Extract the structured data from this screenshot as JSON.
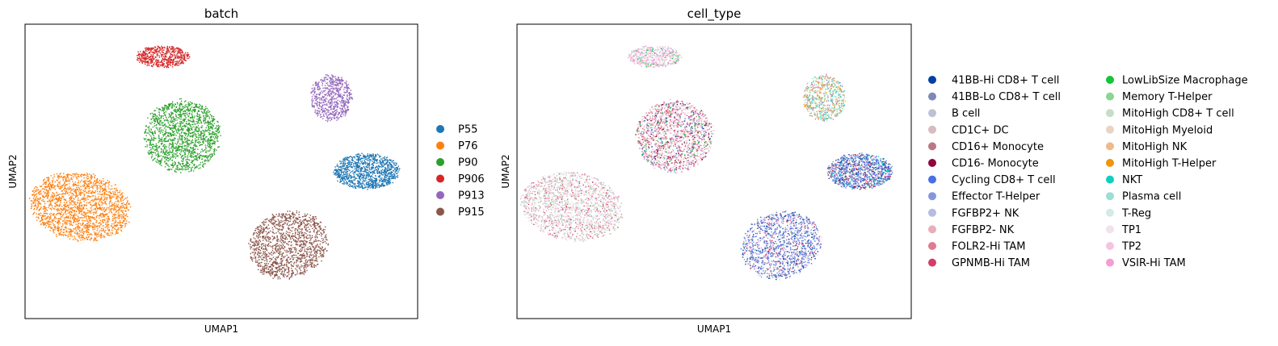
{
  "chart_data": [
    {
      "type": "scatter",
      "title": "batch",
      "xlabel": "UMAP1",
      "ylabel": "UMAP2",
      "xlim": [
        0,
        100
      ],
      "ylim": [
        0,
        100
      ],
      "xticks": [],
      "yticks": [],
      "legend_placement": "right",
      "series": [
        {
          "name": "P55",
          "color": "#1f77b4",
          "clusters": [
            {
              "cx": 87,
              "cy": 50,
              "rx": 8.5,
              "ry": 6.2,
              "n": 1100
            }
          ]
        },
        {
          "name": "P76",
          "color": "#ff7f0e",
          "clusters": [
            {
              "cx": 14,
              "cy": 38,
              "rx": 13.5,
              "ry": 11.5,
              "n": 1900,
              "tilt": -28
            }
          ]
        },
        {
          "name": "P90",
          "color": "#2ca02c",
          "clusters": [
            {
              "cx": 40,
              "cy": 62,
              "rx": 10.0,
              "ry": 12.5,
              "n": 1600
            }
          ]
        },
        {
          "name": "P906",
          "color": "#d62728",
          "clusters": [
            {
              "cx": 35,
              "cy": 89,
              "rx": 7.0,
              "ry": 3.8,
              "n": 550
            }
          ]
        },
        {
          "name": "P913",
          "color": "#9467bd",
          "clusters": [
            {
              "cx": 78,
              "cy": 75,
              "rx": 5.5,
              "ry": 8.0,
              "n": 650
            }
          ]
        },
        {
          "name": "P915",
          "color": "#8c564b",
          "clusters": [
            {
              "cx": 67,
              "cy": 25,
              "rx": 10.0,
              "ry": 12.0,
              "n": 1400,
              "tilt": -20
            }
          ]
        }
      ]
    },
    {
      "type": "scatter",
      "title": "cell_type",
      "xlabel": "UMAP1",
      "ylabel": "UMAP2",
      "xlim": [
        0,
        100
      ],
      "ylim": [
        0,
        100
      ],
      "xticks": [],
      "yticks": [],
      "legend_placement": "right",
      "clusters": [
        {
          "cx": 87,
          "cy": 50,
          "rx": 8.5,
          "ry": 6.2,
          "n": 1100,
          "mix": [
            [
              "41BB-Hi CD8+ T cell",
              3
            ],
            [
              "41BB-Lo CD8+ T cell",
              2
            ],
            [
              "Cycling CD8+ T cell",
              3
            ],
            [
              "Effector T-Helper",
              2
            ],
            [
              "CD16- Monocyte",
              1
            ],
            [
              "GPNMB-Hi TAM",
              1
            ],
            [
              "FGFBP2+ NK",
              1
            ],
            [
              "NKT",
              1
            ]
          ]
        },
        {
          "cx": 14,
          "cy": 38,
          "rx": 13.5,
          "ry": 11.5,
          "n": 1900,
          "tilt": -28,
          "mix": [
            [
              "B cell",
              3
            ],
            [
              "CD1C+ DC",
              2
            ],
            [
              "FGFBP2- NK",
              2
            ],
            [
              "FOLR2-Hi TAM",
              2
            ],
            [
              "TP1",
              4
            ],
            [
              "GPNMB-Hi TAM",
              1
            ],
            [
              "MitoHigh CD8+ T cell",
              1
            ],
            [
              "T-Reg",
              2
            ],
            [
              "Memory T-Helper",
              1
            ]
          ]
        },
        {
          "cx": 40,
          "cy": 62,
          "rx": 10.0,
          "ry": 12.5,
          "n": 1600,
          "mix": [
            [
              "TP2",
              4
            ],
            [
              "CD1C+ DC",
              2
            ],
            [
              "FOLR2-Hi TAM",
              2
            ],
            [
              "CD16+ Monocyte",
              2
            ],
            [
              "GPNMB-Hi TAM",
              1
            ],
            [
              "CD16- Monocyte",
              1
            ],
            [
              "LowLibSize Macrophage",
              1
            ],
            [
              "41BB-Hi CD8+ T cell",
              1
            ],
            [
              "Effector T-Helper",
              1
            ]
          ]
        },
        {
          "cx": 35,
          "cy": 89,
          "rx": 7.0,
          "ry": 3.8,
          "n": 550,
          "mix": [
            [
              "TP1",
              3
            ],
            [
              "VSIR-Hi TAM",
              2
            ],
            [
              "CD1C+ DC",
              2
            ],
            [
              "LowLibSize Macrophage",
              1
            ],
            [
              "FGFBP2+ NK",
              1
            ],
            [
              "B cell",
              1
            ]
          ]
        },
        {
          "cx": 78,
          "cy": 75,
          "rx": 5.5,
          "ry": 8.0,
          "n": 650,
          "mix": [
            [
              "Memory T-Helper",
              2
            ],
            [
              "Plasma cell",
              2
            ],
            [
              "MitoHigh NK",
              2
            ],
            [
              "MitoHigh Myeloid",
              1
            ],
            [
              "FOLR2-Hi TAM",
              2
            ],
            [
              "NKT",
              1
            ],
            [
              "41BB-Lo CD8+ T cell",
              1
            ],
            [
              "MitoHigh T-Helper",
              1
            ]
          ]
        },
        {
          "cx": 67,
          "cy": 25,
          "rx": 10.0,
          "ry": 12.0,
          "n": 1400,
          "tilt": -20,
          "mix": [
            [
              "41BB-Hi CD8+ T cell",
              3
            ],
            [
              "Cycling CD8+ T cell",
              3
            ],
            [
              "Effector T-Helper",
              2
            ],
            [
              "41BB-Lo CD8+ T cell",
              2
            ],
            [
              "TP2",
              2
            ],
            [
              "GPNMB-Hi TAM",
              1
            ],
            [
              "T-Reg",
              1
            ]
          ]
        }
      ],
      "legend": [
        {
          "name": "41BB-Hi CD8+ T cell",
          "color": "#023fa5"
        },
        {
          "name": "41BB-Lo CD8+ T cell",
          "color": "#7d87b9"
        },
        {
          "name": "B cell",
          "color": "#bec1d4"
        },
        {
          "name": "CD1C+ DC",
          "color": "#d6bcc0"
        },
        {
          "name": "CD16+ Monocyte",
          "color": "#bb7784"
        },
        {
          "name": "CD16- Monocyte",
          "color": "#8e063b"
        },
        {
          "name": "Cycling CD8+ T cell",
          "color": "#4a6fe3"
        },
        {
          "name": "Effector T-Helper",
          "color": "#8595e1"
        },
        {
          "name": "FGFBP2+ NK",
          "color": "#b5bbe3"
        },
        {
          "name": "FGFBP2- NK",
          "color": "#e6afb9"
        },
        {
          "name": "FOLR2-Hi TAM",
          "color": "#e07b91"
        },
        {
          "name": "GPNMB-Hi TAM",
          "color": "#d33f6a"
        },
        {
          "name": "LowLibSize Macrophage",
          "color": "#11c638"
        },
        {
          "name": "Memory T-Helper",
          "color": "#8dd593"
        },
        {
          "name": "MitoHigh CD8+ T cell",
          "color": "#c6dec7"
        },
        {
          "name": "MitoHigh Myeloid",
          "color": "#ead3c6"
        },
        {
          "name": "MitoHigh NK",
          "color": "#f0b98d"
        },
        {
          "name": "MitoHigh T-Helper",
          "color": "#ef9708"
        },
        {
          "name": "NKT",
          "color": "#0fcfc0"
        },
        {
          "name": "Plasma cell",
          "color": "#9cded6"
        },
        {
          "name": "T-Reg",
          "color": "#d5eae7"
        },
        {
          "name": "TP1",
          "color": "#f3e1eb"
        },
        {
          "name": "TP2",
          "color": "#f6c4e1"
        },
        {
          "name": "VSIR-Hi TAM",
          "color": "#f79cd4"
        }
      ]
    }
  ]
}
